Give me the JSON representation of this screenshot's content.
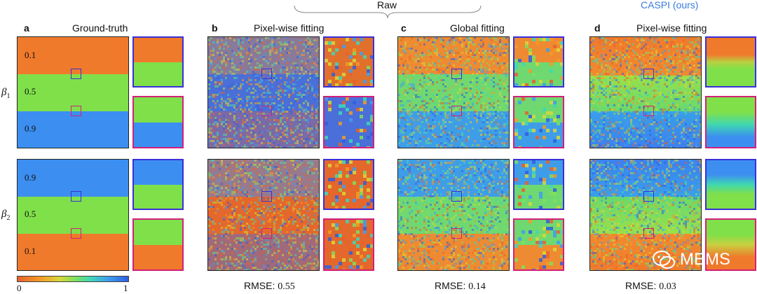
{
  "header": {
    "raw_label": "Raw",
    "caspi_label": "CASPI (ours)",
    "caspi_color": "#3a7be0"
  },
  "columns": [
    {
      "letter": "a",
      "title": "Ground-truth",
      "rmse": null
    },
    {
      "letter": "b",
      "title": "Pixel-wise fitting",
      "rmse_label": "RMSE:",
      "rmse_value": "0.55"
    },
    {
      "letter": "c",
      "title": "Global fitting",
      "rmse_label": "RMSE:",
      "rmse_value": "0.14"
    },
    {
      "letter": "d",
      "title": "Pixel-wise fitting",
      "rmse_label": "RMSE:",
      "rmse_value": "0.03"
    }
  ],
  "rows": [
    {
      "name": "β",
      "sub": "1",
      "band_values": [
        "0.1",
        "0.5",
        "0.9"
      ]
    },
    {
      "name": "β",
      "sub": "2",
      "band_values": [
        "0.9",
        "0.5",
        "0.1"
      ]
    }
  ],
  "colorbar": {
    "min": "0",
    "max": "1"
  },
  "colors": {
    "orange": "#f07a2c",
    "green": "#7fe04a",
    "blue": "#3c8ff0",
    "roi_blue": "#3a2fd8",
    "roi_magenta": "#d2207a"
  },
  "watermark": "MEMS"
}
